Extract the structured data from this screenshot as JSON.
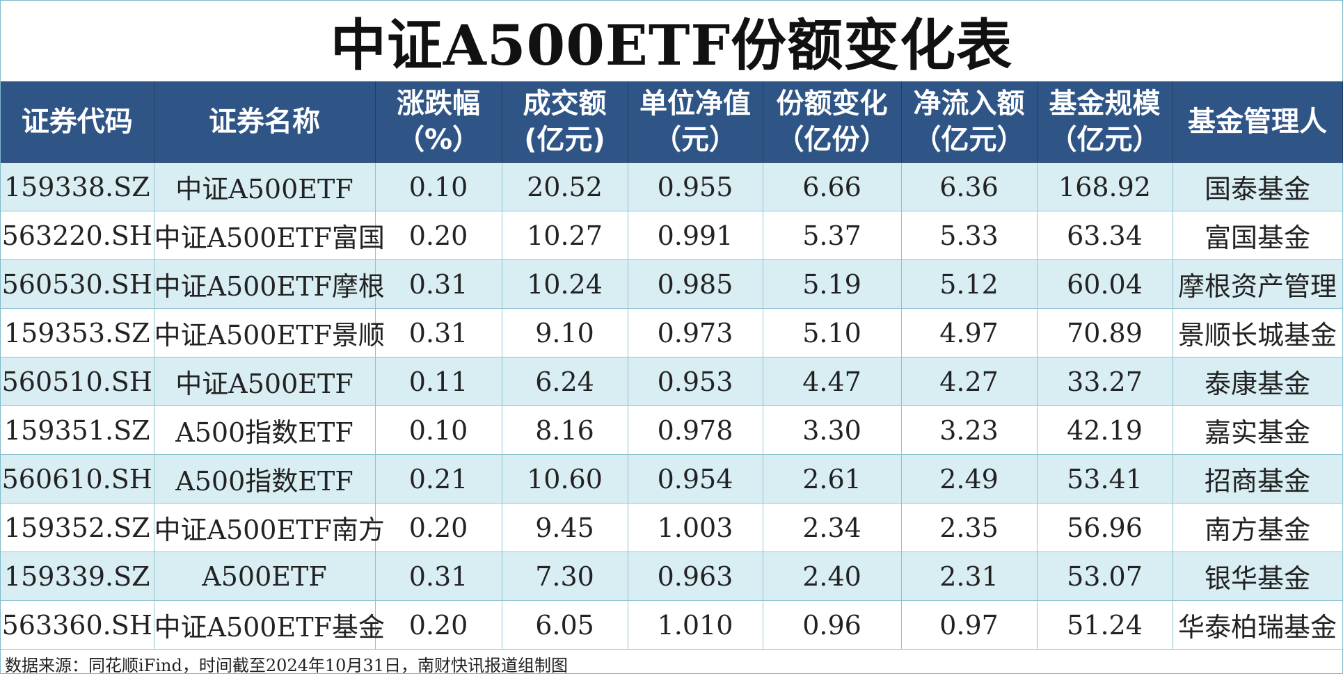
{
  "title": "中证A500ETF份额变化表",
  "headers": [
    {
      "line1": "证券代码",
      "line2": ""
    },
    {
      "line1": "证券名称",
      "line2": ""
    },
    {
      "line1": "涨跌幅",
      "line2": "（%）"
    },
    {
      "line1": "成交额",
      "line2": "(亿元)"
    },
    {
      "line1": "单位净值",
      "line2": "（元）"
    },
    {
      "line1": "份额变化",
      "line2": "（亿份）"
    },
    {
      "line1": "净流入额",
      "line2": "（亿元）"
    },
    {
      "line1": "基金规模",
      "line2": "（亿元）"
    },
    {
      "line1": "基金管理人",
      "line2": ""
    }
  ],
  "rows": [
    {
      "code": "159338.SZ",
      "name": "中证A500ETF",
      "change_pct": "0.10",
      "turnover": "20.52",
      "nav": "0.955",
      "share_change": "6.66",
      "net_inflow": "6.36",
      "scale": "168.92",
      "manager": "国泰基金"
    },
    {
      "code": "563220.SH",
      "name": "中证A500ETF富国",
      "change_pct": "0.20",
      "turnover": "10.27",
      "nav": "0.991",
      "share_change": "5.37",
      "net_inflow": "5.33",
      "scale": "63.34",
      "manager": "富国基金"
    },
    {
      "code": "560530.SH",
      "name": "中证A500ETF摩根",
      "change_pct": "0.31",
      "turnover": "10.24",
      "nav": "0.985",
      "share_change": "5.19",
      "net_inflow": "5.12",
      "scale": "60.04",
      "manager": "摩根资产管理"
    },
    {
      "code": "159353.SZ",
      "name": "中证A500ETF景顺",
      "change_pct": "0.31",
      "turnover": "9.10",
      "nav": "0.973",
      "share_change": "5.10",
      "net_inflow": "4.97",
      "scale": "70.89",
      "manager": "景顺长城基金"
    },
    {
      "code": "560510.SH",
      "name": "中证A500ETF",
      "change_pct": "0.11",
      "turnover": "6.24",
      "nav": "0.953",
      "share_change": "4.47",
      "net_inflow": "4.27",
      "scale": "33.27",
      "manager": "泰康基金"
    },
    {
      "code": "159351.SZ",
      "name": "A500指数ETF",
      "change_pct": "0.10",
      "turnover": "8.16",
      "nav": "0.978",
      "share_change": "3.30",
      "net_inflow": "3.23",
      "scale": "42.19",
      "manager": "嘉实基金"
    },
    {
      "code": "560610.SH",
      "name": "A500指数ETF",
      "change_pct": "0.21",
      "turnover": "10.60",
      "nav": "0.954",
      "share_change": "2.61",
      "net_inflow": "2.49",
      "scale": "53.41",
      "manager": "招商基金"
    },
    {
      "code": "159352.SZ",
      "name": "中证A500ETF南方",
      "change_pct": "0.20",
      "turnover": "9.45",
      "nav": "1.003",
      "share_change": "2.34",
      "net_inflow": "2.35",
      "scale": "56.96",
      "manager": "南方基金"
    },
    {
      "code": "159339.SZ",
      "name": "A500ETF",
      "change_pct": "0.31",
      "turnover": "7.30",
      "nav": "0.963",
      "share_change": "2.40",
      "net_inflow": "2.31",
      "scale": "53.07",
      "manager": "银华基金"
    },
    {
      "code": "563360.SH",
      "name": "中证A500ETF基金",
      "change_pct": "0.20",
      "turnover": "6.05",
      "nav": "1.010",
      "share_change": "0.96",
      "net_inflow": "0.97",
      "scale": "51.24",
      "manager": "华泰柏瑞基金"
    }
  ],
  "footer": "数据来源：同花顺iFind，时间截至2024年10月31日，南财快讯报道组制图",
  "colors": {
    "header_bg": "#2f5587",
    "row_alt_bg": "#d9eef3",
    "border": "#8cc3d3"
  }
}
